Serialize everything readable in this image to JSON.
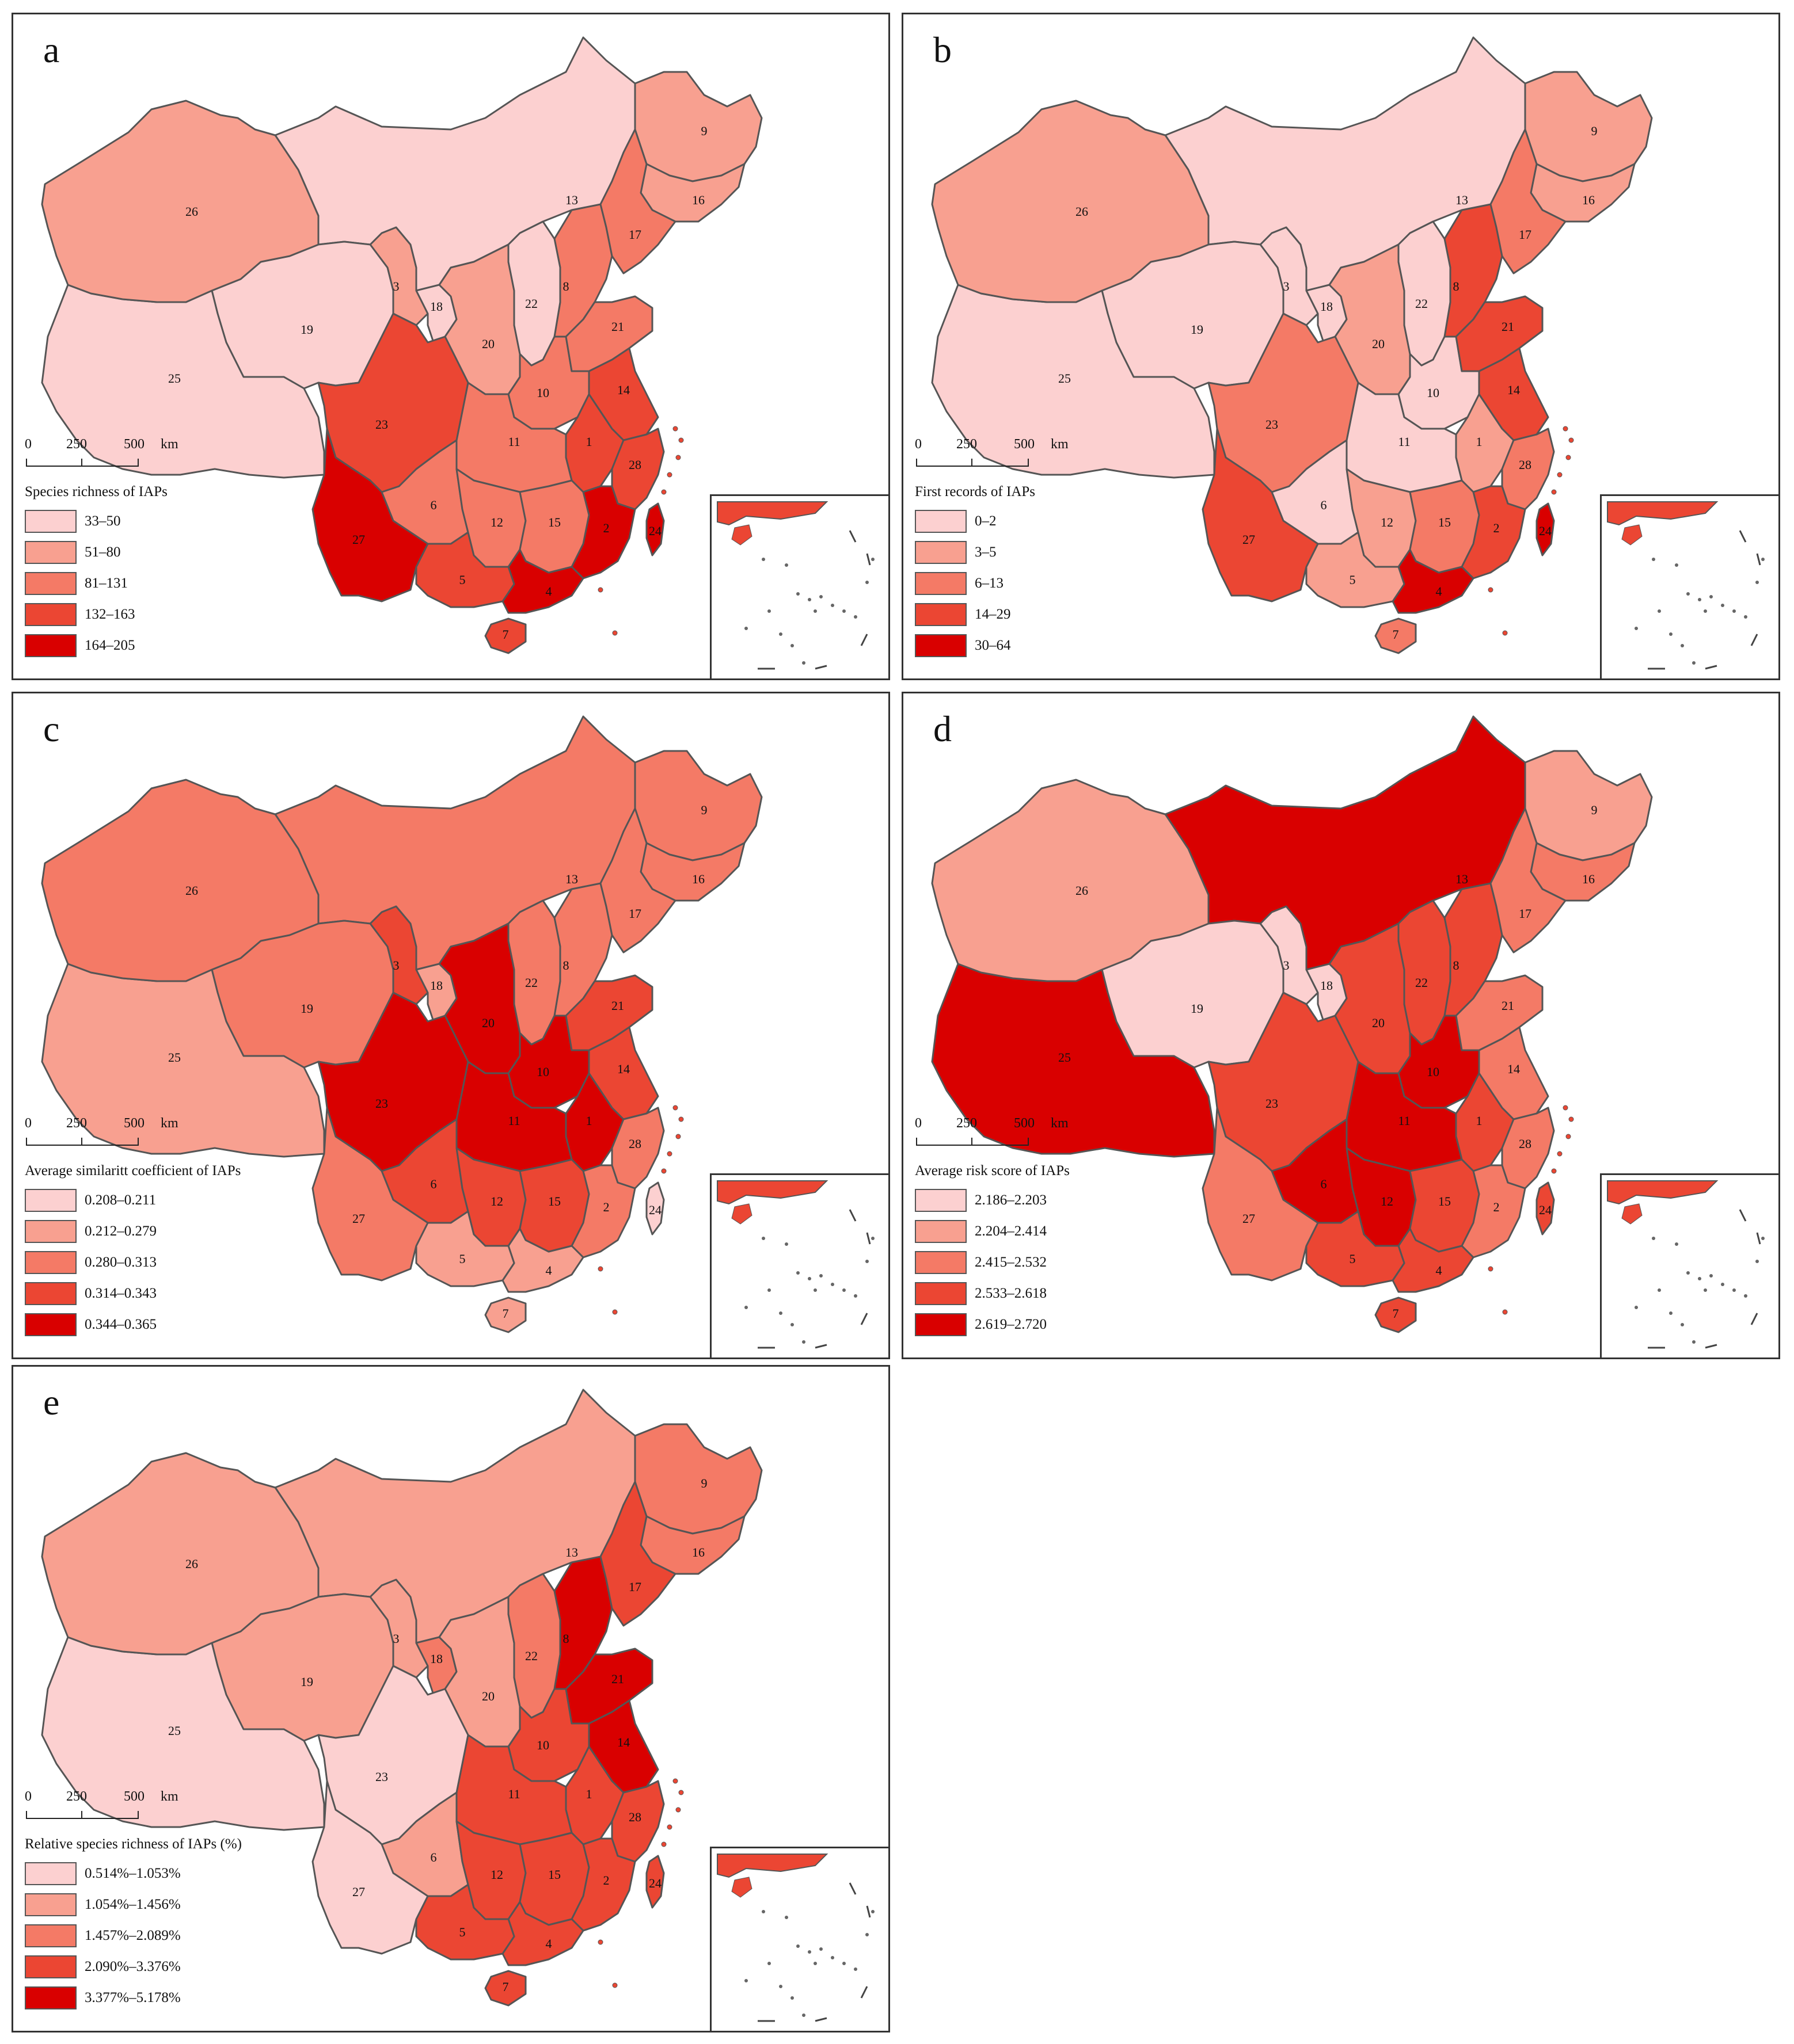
{
  "colors": [
    "#fcd0d0",
    "#f8a090",
    "#f47a66",
    "#eb4633",
    "#d90000"
  ],
  "border_color": "#555555",
  "panels": [
    {
      "letter": "a",
      "legend_title": "Species richness of IAPs",
      "legend": [
        "33–50",
        "51–80",
        "81–131",
        "132–163",
        "164–205"
      ],
      "scale": {
        "ticks": [
          "0",
          "250",
          "500"
        ],
        "unit": "km"
      },
      "provinces": {
        "1": 3,
        "2": 4,
        "3": 1,
        "4": 4,
        "5": 3,
        "6": 2,
        "7": 3,
        "8": 2,
        "9": 1,
        "10": 2,
        "11": 2,
        "12": 2,
        "13": 0,
        "14": 3,
        "15": 2,
        "16": 1,
        "17": 2,
        "18": 0,
        "19": 0,
        "20": 1,
        "21": 2,
        "22": 0,
        "23": 3,
        "24": 4,
        "25": 0,
        "26": 1,
        "27": 4,
        "28": 3
      }
    },
    {
      "letter": "b",
      "legend_title": "First records of IAPs",
      "legend": [
        "0–2",
        "3–5",
        "6–13",
        "14–29",
        "30–64"
      ],
      "scale": {
        "ticks": [
          "0",
          "250",
          "500"
        ],
        "unit": "km"
      },
      "provinces": {
        "1": 1,
        "2": 3,
        "3": 0,
        "4": 4,
        "5": 1,
        "6": 0,
        "7": 2,
        "8": 3,
        "9": 1,
        "10": 0,
        "11": 0,
        "12": 1,
        "13": 0,
        "14": 3,
        "15": 2,
        "16": 1,
        "17": 2,
        "18": 0,
        "19": 0,
        "20": 1,
        "21": 3,
        "22": 0,
        "23": 2,
        "24": 4,
        "25": 0,
        "26": 1,
        "27": 3,
        "28": 2
      }
    },
    {
      "letter": "c",
      "legend_title": "Average similaritt coefficient of IAPs",
      "legend": [
        "0.208–0.211",
        "0.212–0.279",
        "0.280–0.313",
        "0.314–0.343",
        "0.344–0.365"
      ],
      "scale": {
        "ticks": [
          "0",
          "250",
          "500"
        ],
        "unit": "km"
      },
      "provinces": {
        "1": 4,
        "2": 2,
        "3": 3,
        "4": 1,
        "5": 1,
        "6": 3,
        "7": 1,
        "8": 2,
        "9": 2,
        "10": 4,
        "11": 4,
        "12": 3,
        "13": 2,
        "14": 3,
        "15": 3,
        "16": 2,
        "17": 2,
        "18": 1,
        "19": 2,
        "20": 4,
        "21": 3,
        "22": 2,
        "23": 4,
        "24": 0,
        "25": 1,
        "26": 2,
        "27": 2,
        "28": 2
      }
    },
    {
      "letter": "d",
      "legend_title": "Average risk score of IAPs",
      "legend": [
        "2.186–2.203",
        "2.204–2.414",
        "2.415–2.532",
        "2.533–2.618",
        "2.619–2.720"
      ],
      "scale": {
        "ticks": [
          "0",
          "250",
          "500"
        ],
        "unit": "km"
      },
      "provinces": {
        "1": 3,
        "2": 2,
        "3": 0,
        "4": 3,
        "5": 3,
        "6": 4,
        "7": 3,
        "8": 3,
        "9": 1,
        "10": 4,
        "11": 4,
        "12": 4,
        "13": 4,
        "14": 2,
        "15": 3,
        "16": 2,
        "17": 2,
        "18": 0,
        "19": 0,
        "20": 3,
        "21": 2,
        "22": 3,
        "23": 3,
        "24": 3,
        "25": 4,
        "26": 1,
        "27": 2,
        "28": 2
      }
    },
    {
      "letter": "e",
      "legend_title": "Relative species richness of IAPs (%)",
      "legend": [
        "0.514%–1.053%",
        "1.054%–1.456%",
        "1.457%–2.089%",
        "2.090%–3.376%",
        "3.377%–5.178%"
      ],
      "scale": {
        "ticks": [
          "0",
          "250",
          "500"
        ],
        "unit": "km"
      },
      "provinces": {
        "1": 3,
        "2": 3,
        "3": 1,
        "4": 3,
        "5": 3,
        "6": 1,
        "7": 3,
        "8": 4,
        "9": 2,
        "10": 3,
        "11": 3,
        "12": 3,
        "13": 1,
        "14": 4,
        "15": 3,
        "16": 2,
        "17": 3,
        "18": 2,
        "19": 1,
        "20": 1,
        "21": 4,
        "22": 2,
        "23": 0,
        "24": 3,
        "25": 0,
        "26": 1,
        "27": 0,
        "28": 3
      }
    }
  ]
}
